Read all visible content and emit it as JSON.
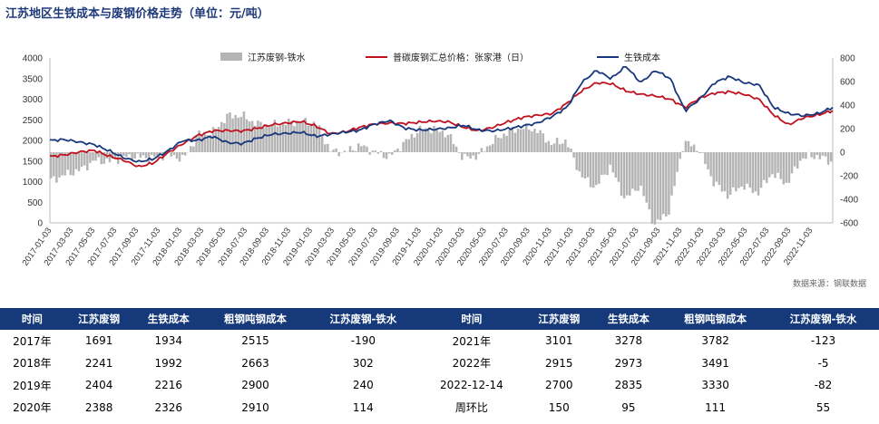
{
  "title": "江苏地区生铁成本与废钢价格走势（单位：元/吨）",
  "source": "数据来源：钢联数据",
  "chart_data": {
    "type": "bar+line",
    "left_axis": {
      "min": 0,
      "max": 4000,
      "ticks": [
        "0",
        "500",
        "1000",
        "1500",
        "2000",
        "2500",
        "3000",
        "3500",
        "4000"
      ]
    },
    "right_axis": {
      "min": -600,
      "max": 800,
      "ticks": [
        "-600",
        "-400",
        "-200",
        "0",
        "200",
        "400",
        "600",
        "800"
      ]
    },
    "x_ticks": [
      "2017-01-03",
      "2017-03-03",
      "2017-05-03",
      "2017-07-03",
      "2017-09-03",
      "2017-11-03",
      "2018-01-03",
      "2018-03-03",
      "2018-05-03",
      "2018-07-03",
      "2018-09-03",
      "2018-11-03",
      "2019-01-03",
      "2019-03-03",
      "2019-05-03",
      "2019-07-03",
      "2019-09-03",
      "2019-11-03",
      "2020-01-03",
      "2020-03-03",
      "2020-05-03",
      "2020-07-03",
      "2020-09-03",
      "2020-11-03",
      "2021-01-03",
      "2021-03-03",
      "2021-05-03",
      "2021-07-03",
      "2021-09-03",
      "2021-11-03",
      "2022-01-03",
      "2022-03-03",
      "2022-05-03",
      "2022-07-03",
      "2022-09-03",
      "2022-11-03"
    ],
    "legend": [
      "江苏废钢-铁水",
      "普碳废钢汇总价格：张家港（日）",
      "生铁成本"
    ],
    "colors": {
      "bar": "#b4b4b4",
      "scrap": "#c0111f",
      "iron": "#17377d"
    },
    "scrap_price": [
      1610,
      1650,
      1720,
      1760,
      1620,
      1520,
      1360,
      1450,
      1700,
      1920,
      2120,
      2230,
      2240,
      2230,
      2290,
      2380,
      2420,
      2460,
      2350,
      2160,
      2210,
      2320,
      2400,
      2420,
      2410,
      2440,
      2470,
      2450,
      2320,
      2230,
      2320,
      2450,
      2560,
      2610,
      2650,
      2900,
      3200,
      3400,
      3380,
      3200,
      3120,
      3080,
      3000,
      2800,
      3030,
      3150,
      3180,
      3120,
      3000,
      2620,
      2380,
      2550,
      2620,
      2720
    ],
    "iron_cost": [
      2000,
      2020,
      1960,
      1900,
      1750,
      1580,
      1480,
      1550,
      1750,
      2000,
      2000,
      2100,
      1950,
      1920,
      2050,
      2150,
      2170,
      2200,
      2100,
      2150,
      2200,
      2250,
      2400,
      2480,
      2300,
      2250,
      2270,
      2300,
      2370,
      2250,
      2230,
      2280,
      2350,
      2420,
      2580,
      2800,
      3400,
      3700,
      3500,
      3800,
      3400,
      3700,
      3500,
      2720,
      3000,
      3400,
      3550,
      3400,
      3350,
      2800,
      2650,
      2600,
      2650,
      2800
    ],
    "spread": [
      -240,
      -190,
      -150,
      -70,
      -80,
      -40,
      -40,
      -50,
      -20,
      -60,
      150,
      170,
      310,
      310,
      240,
      230,
      250,
      260,
      250,
      10,
      0,
      60,
      0,
      -40,
      80,
      190,
      200,
      150,
      -50,
      -30,
      90,
      170,
      210,
      190,
      70,
      100,
      -200,
      -300,
      -120,
      -400,
      -280,
      -620,
      -500,
      90,
      30,
      -250,
      -370,
      -280,
      -350,
      -180,
      -270,
      -50,
      -30,
      -80
    ]
  },
  "table": {
    "headers": [
      "时间",
      "江苏废钢",
      "生铁成本",
      "粗钢吨钢成本",
      "江苏废钢-铁水",
      "时间",
      "江苏废钢",
      "生铁成本",
      "粗钢吨钢成本",
      "江苏废钢-铁水"
    ],
    "rows": [
      [
        "2017年",
        "1691",
        "1934",
        "2515",
        "-190",
        "2021年",
        "3101",
        "3278",
        "3782",
        "-123"
      ],
      [
        "2018年",
        "2241",
        "1992",
        "2663",
        "302",
        "2022年",
        "2915",
        "2973",
        "3491",
        "-5"
      ],
      [
        "2019年",
        "2404",
        "2216",
        "2900",
        "240",
        "2022-12-14",
        "2700",
        "2835",
        "3330",
        "-82"
      ],
      [
        "2020年",
        "2388",
        "2326",
        "2910",
        "114",
        "周环比",
        "150",
        "95",
        "111",
        "55"
      ]
    ]
  }
}
